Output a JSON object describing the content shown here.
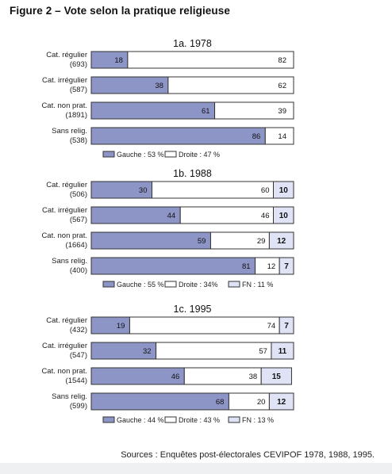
{
  "figure": {
    "title": "Figure 2 – Vote selon la pratique religieuse",
    "source": "Sources : Enquêtes post-électorales CEVIPOF 1978, 1988, 1995."
  },
  "colors": {
    "gauche": "#8d95c6",
    "droite": "#ffffff",
    "fn": "#dfe3f5",
    "border": "#333333"
  },
  "chart_data": [
    {
      "type": "bar",
      "stacked": true,
      "orientation": "horizontal",
      "title": "1a.  1978",
      "categories": [
        {
          "label": "Cat. régulier",
          "n": "(693)"
        },
        {
          "label": "Cat. irrégulier",
          "n": "(587)"
        },
        {
          "label": "Cat. non prat.",
          "n": "(1891)"
        },
        {
          "label": "Sans relig.",
          "n": "(538)"
        }
      ],
      "series": [
        {
          "key": "gauche",
          "values": [
            18,
            38,
            61,
            86
          ]
        },
        {
          "key": "droite",
          "values": [
            82,
            62,
            39,
            14
          ]
        }
      ],
      "legend": [
        "Gauche : 53 %",
        "Droite : 47 %"
      ],
      "xlim": [
        0,
        100
      ],
      "legend_position": "bottom"
    },
    {
      "type": "bar",
      "stacked": true,
      "orientation": "horizontal",
      "title": "1b.  1988",
      "categories": [
        {
          "label": "Cat. régulier",
          "n": "(506)"
        },
        {
          "label": "Cat. irrégulier",
          "n": "(567)"
        },
        {
          "label": "Cat. non prat.",
          "n": "(1664)"
        },
        {
          "label": "Sans relig.",
          "n": "(400)"
        }
      ],
      "series": [
        {
          "key": "gauche",
          "values": [
            30,
            44,
            59,
            81
          ]
        },
        {
          "key": "droite",
          "values": [
            60,
            46,
            29,
            12
          ]
        },
        {
          "key": "fn",
          "values": [
            10,
            10,
            12,
            7
          ]
        }
      ],
      "legend": [
        "Gauche : 55 %",
        "Droite : 34%",
        "FN : 11 %"
      ],
      "xlim": [
        0,
        100
      ],
      "legend_position": "bottom"
    },
    {
      "type": "bar",
      "stacked": true,
      "orientation": "horizontal",
      "title": "1c.  1995",
      "categories": [
        {
          "label": "Cat. régulier",
          "n": "(432)"
        },
        {
          "label": "Cat. irrégulier",
          "n": "(547)"
        },
        {
          "label": "Cat. non prat.",
          "n": "(1544)"
        },
        {
          "label": "Sans relig.",
          "n": "(599)"
        }
      ],
      "series": [
        {
          "key": "gauche",
          "values": [
            19,
            32,
            46,
            68
          ]
        },
        {
          "key": "droite",
          "values": [
            74,
            57,
            38,
            20
          ]
        },
        {
          "key": "fn",
          "values": [
            7,
            11,
            15,
            12
          ]
        }
      ],
      "legend": [
        "Gauche : 44 %",
        "Droite : 43 %",
        "FN : 13 %"
      ],
      "xlim": [
        0,
        100
      ],
      "legend_position": "bottom"
    }
  ]
}
